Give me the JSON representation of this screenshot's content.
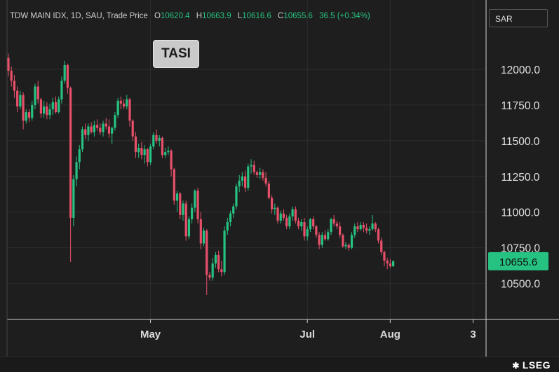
{
  "legend": {
    "symbol": "TDW MAIN IDX, 1D, SAU, Trade Price",
    "open_label": "O",
    "open": "10620.4",
    "high_label": "H",
    "high": "10663.9",
    "low_label": "L",
    "low": "10616.6",
    "close_label": "C",
    "close": "10655.6",
    "change": "36.5 (+0.34%)"
  },
  "currency": "SAR",
  "tag": "TASI",
  "brand": "LSEG",
  "colors": {
    "up": "#26c281",
    "down": "#e8506a",
    "background": "#1e1e1e",
    "grid": "#2d2d2d"
  },
  "chart_data": {
    "type": "candlestick",
    "y_ticks": [
      10500,
      10750,
      11000,
      11250,
      11500,
      11750,
      12000
    ],
    "y_tick_labels": [
      "10500.0",
      "10750.0",
      "11000.0",
      "11250.0",
      "11500.0",
      "11750.0",
      "12000.0"
    ],
    "ylim": [
      10250,
      12300
    ],
    "x_ticks": [
      {
        "index": 48,
        "label": "May"
      },
      {
        "index": 101,
        "label": "Jul"
      },
      {
        "index": 129,
        "label": "Aug"
      },
      {
        "index": 157,
        "label": "3"
      }
    ],
    "last_price": 10655.6,
    "last_price_label": "10655.6",
    "candles": [
      [
        12080,
        12110,
        11950,
        11990
      ],
      [
        11990,
        12020,
        11880,
        11920
      ],
      [
        11920,
        11960,
        11800,
        11850
      ],
      [
        11850,
        11880,
        11700,
        11740
      ],
      [
        11740,
        11850,
        11720,
        11820
      ],
      [
        11820,
        11840,
        11580,
        11640
      ],
      [
        11640,
        11720,
        11620,
        11700
      ],
      [
        11700,
        11720,
        11630,
        11660
      ],
      [
        11660,
        11780,
        11640,
        11750
      ],
      [
        11750,
        11900,
        11720,
        11880
      ],
      [
        11880,
        11920,
        11760,
        11790
      ],
      [
        11790,
        11800,
        11660,
        11690
      ],
      [
        11690,
        11780,
        11660,
        11740
      ],
      [
        11740,
        11770,
        11650,
        11680
      ],
      [
        11680,
        11760,
        11650,
        11720
      ],
      [
        11720,
        11800,
        11680,
        11770
      ],
      [
        11770,
        11810,
        11690,
        11700
      ],
      [
        11700,
        11810,
        11690,
        11790
      ],
      [
        11790,
        11950,
        11760,
        11920
      ],
      [
        11920,
        12060,
        11900,
        12030
      ],
      [
        12030,
        12040,
        11830,
        11870
      ],
      [
        11870,
        11880,
        10650,
        10960
      ],
      [
        10960,
        11260,
        10900,
        11230
      ],
      [
        11230,
        11390,
        11180,
        11350
      ],
      [
        11350,
        11470,
        11300,
        11440
      ],
      [
        11440,
        11600,
        11420,
        11580
      ],
      [
        11580,
        11620,
        11510,
        11540
      ],
      [
        11540,
        11620,
        11500,
        11600
      ],
      [
        11600,
        11630,
        11550,
        11560
      ],
      [
        11560,
        11640,
        11530,
        11610
      ],
      [
        11610,
        11650,
        11570,
        11590
      ],
      [
        11590,
        11620,
        11540,
        11560
      ],
      [
        11560,
        11640,
        11530,
        11620
      ],
      [
        11620,
        11660,
        11580,
        11600
      ],
      [
        11600,
        11650,
        11520,
        11550
      ],
      [
        11550,
        11600,
        11480,
        11590
      ],
      [
        11590,
        11700,
        11570,
        11680
      ],
      [
        11680,
        11800,
        11660,
        11780
      ],
      [
        11780,
        11810,
        11720,
        11760
      ],
      [
        11760,
        11790,
        11720,
        11740
      ],
      [
        11740,
        11820,
        11720,
        11790
      ],
      [
        11790,
        11800,
        11600,
        11640
      ],
      [
        11640,
        11650,
        11500,
        11530
      ],
      [
        11530,
        11560,
        11380,
        11420
      ],
      [
        11420,
        11480,
        11380,
        11450
      ],
      [
        11450,
        11490,
        11370,
        11400
      ],
      [
        11400,
        11470,
        11340,
        11440
      ],
      [
        11440,
        11450,
        11320,
        11350
      ],
      [
        11350,
        11480,
        11330,
        11460
      ],
      [
        11460,
        11560,
        11440,
        11540
      ],
      [
        11540,
        11580,
        11480,
        11500
      ],
      [
        11500,
        11540,
        11460,
        11520
      ],
      [
        11520,
        11530,
        11380,
        11400
      ],
      [
        11400,
        11450,
        11380,
        11420
      ],
      [
        11420,
        11460,
        11400,
        11430
      ],
      [
        11430,
        11440,
        11250,
        11300
      ],
      [
        11300,
        11310,
        11050,
        11080
      ],
      [
        11080,
        11150,
        11000,
        11130
      ],
      [
        11130,
        11140,
        10950,
        10980
      ],
      [
        10980,
        11080,
        10940,
        11060
      ],
      [
        11060,
        11080,
        10800,
        10830
      ],
      [
        10830,
        10970,
        10810,
        10950
      ],
      [
        10950,
        11060,
        10920,
        11030
      ],
      [
        11030,
        11160,
        11000,
        11150
      ],
      [
        11150,
        11170,
        10920,
        10950
      ],
      [
        10950,
        11000,
        10740,
        10780
      ],
      [
        10780,
        10890,
        10760,
        10870
      ],
      [
        10870,
        10880,
        10420,
        10560
      ],
      [
        10560,
        10580,
        10520,
        10540
      ],
      [
        10540,
        10680,
        10520,
        10640
      ],
      [
        10640,
        10720,
        10610,
        10700
      ],
      [
        10700,
        10730,
        10580,
        10600
      ],
      [
        10600,
        10660,
        10550,
        10580
      ],
      [
        10580,
        10900,
        10560,
        10870
      ],
      [
        10870,
        10960,
        10840,
        10930
      ],
      [
        10930,
        11010,
        10900,
        10990
      ],
      [
        10990,
        11060,
        10960,
        11040
      ],
      [
        11040,
        11200,
        11020,
        11180
      ],
      [
        11180,
        11260,
        11140,
        11220
      ],
      [
        11220,
        11280,
        11180,
        11250
      ],
      [
        11250,
        11290,
        11140,
        11170
      ],
      [
        11170,
        11340,
        11150,
        11320
      ],
      [
        11320,
        11370,
        11270,
        11330
      ],
      [
        11330,
        11360,
        11260,
        11280
      ],
      [
        11280,
        11290,
        11240,
        11260
      ],
      [
        11260,
        11310,
        11230,
        11280
      ],
      [
        11280,
        11300,
        11220,
        11240
      ],
      [
        11240,
        11280,
        11180,
        11200
      ],
      [
        11200,
        11220,
        11090,
        11100
      ],
      [
        11100,
        11120,
        10990,
        11020
      ],
      [
        11020,
        11060,
        10980,
        11030
      ],
      [
        11030,
        11040,
        10920,
        10940
      ],
      [
        10940,
        11010,
        10920,
        10990
      ],
      [
        10990,
        11020,
        10940,
        10960
      ],
      [
        10960,
        10980,
        10880,
        10900
      ],
      [
        10900,
        10990,
        10880,
        10970
      ],
      [
        10970,
        11040,
        10940,
        11020
      ],
      [
        11020,
        11040,
        10920,
        10940
      ],
      [
        10940,
        10960,
        10880,
        10900
      ],
      [
        10900,
        10950,
        10870,
        10930
      ],
      [
        10930,
        10960,
        10800,
        10830
      ],
      [
        10830,
        10900,
        10800,
        10880
      ],
      [
        10880,
        10960,
        10860,
        10950
      ],
      [
        10950,
        10970,
        10880,
        10900
      ],
      [
        10900,
        10910,
        10820,
        10840
      ],
      [
        10840,
        10860,
        10740,
        10770
      ],
      [
        10770,
        10860,
        10750,
        10840
      ],
      [
        10840,
        10870,
        10800,
        10810
      ],
      [
        10810,
        10880,
        10800,
        10860
      ],
      [
        10860,
        10960,
        10840,
        10950
      ],
      [
        10950,
        10980,
        10900,
        10920
      ],
      [
        10920,
        10940,
        10880,
        10900
      ],
      [
        10900,
        10930,
        10820,
        10840
      ],
      [
        10840,
        10850,
        10750,
        10760
      ],
      [
        10760,
        10790,
        10740,
        10770
      ],
      [
        10770,
        10780,
        10730,
        10750
      ],
      [
        10750,
        10860,
        10740,
        10840
      ],
      [
        10840,
        10920,
        10820,
        10900
      ],
      [
        10900,
        10930,
        10860,
        10880
      ],
      [
        10880,
        10930,
        10870,
        10910
      ],
      [
        10910,
        10930,
        10860,
        10890
      ],
      [
        10890,
        10920,
        10850,
        10870
      ],
      [
        10870,
        10900,
        10840,
        10880
      ],
      [
        10880,
        10980,
        10870,
        10920
      ],
      [
        10920,
        10930,
        10860,
        10880
      ],
      [
        10880,
        10890,
        10780,
        10800
      ],
      [
        10800,
        10820,
        10700,
        10720
      ],
      [
        10720,
        10730,
        10620,
        10660
      ],
      [
        10660,
        10680,
        10600,
        10640
      ],
      [
        10640,
        10670,
        10610,
        10620
      ],
      [
        10620.4,
        10663.9,
        10616.6,
        10655.6
      ]
    ]
  }
}
